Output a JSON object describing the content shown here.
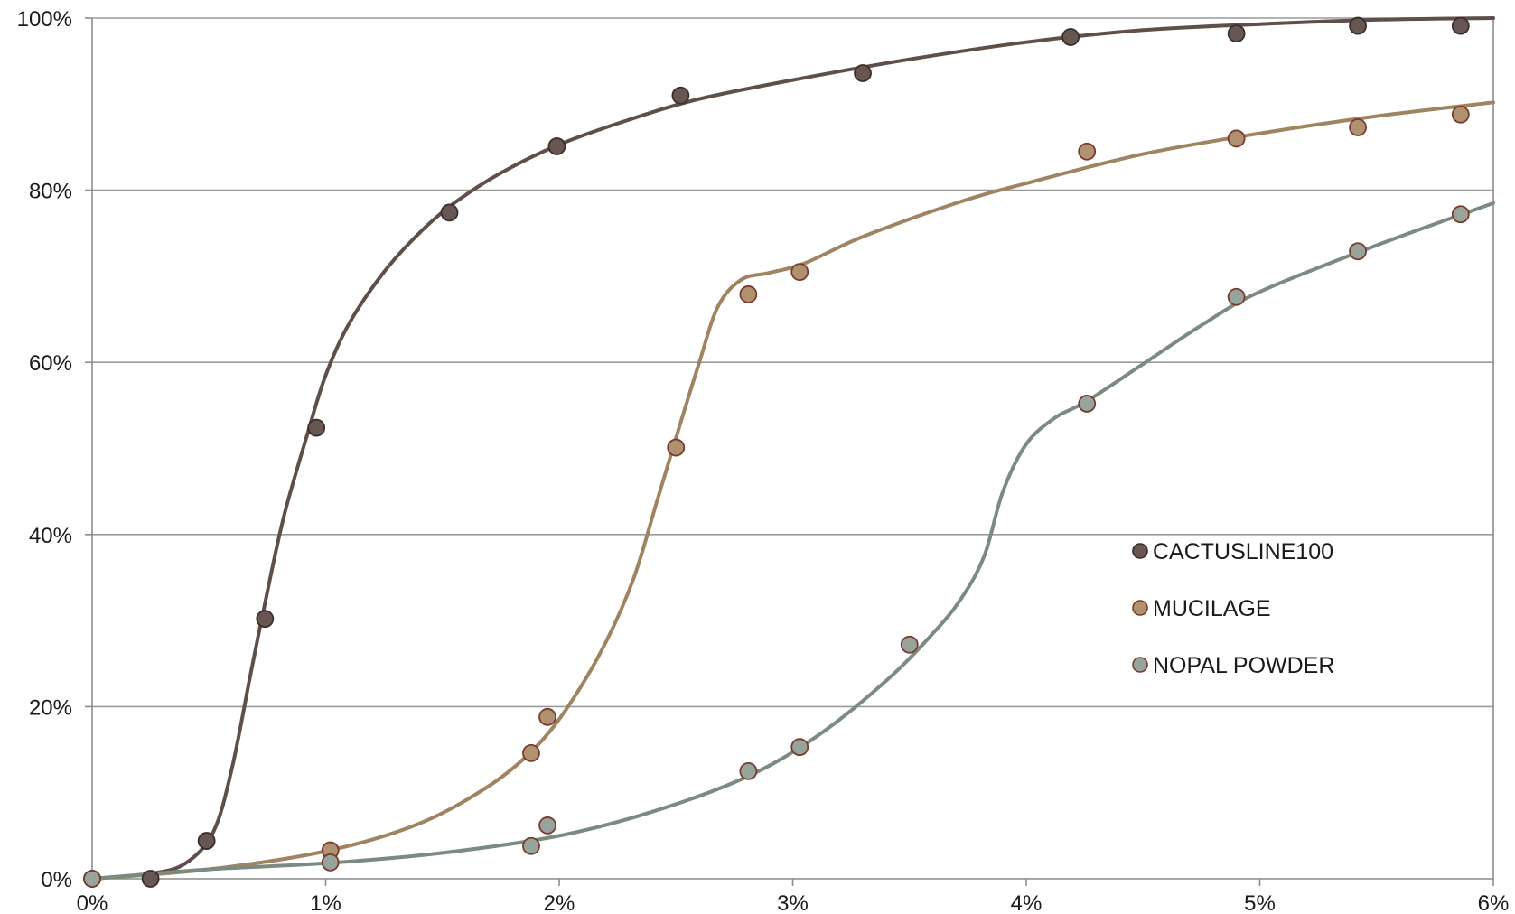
{
  "chart_data": {
    "type": "scatter",
    "title": "",
    "xlabel": "",
    "ylabel": "",
    "xlim": [
      0,
      6
    ],
    "ylim": [
      0,
      100
    ],
    "x_ticks": [
      0,
      1,
      2,
      3,
      4,
      5,
      6
    ],
    "y_ticks": [
      0,
      20,
      40,
      60,
      80,
      100
    ],
    "x_tick_labels": [
      "0%",
      "1%",
      "2%",
      "3%",
      "4%",
      "5%",
      "6%"
    ],
    "y_tick_labels": [
      "0%",
      "20%",
      "40%",
      "60%",
      "80%",
      "100%"
    ],
    "grid": "horizontal",
    "legend_position": "center-right",
    "series": [
      {
        "name": "CACTUSLINE100",
        "color": "#5e4f49",
        "fill": "#675651",
        "points": [
          [
            0,
            0
          ],
          [
            0.25,
            0
          ],
          [
            0.49,
            4.4
          ],
          [
            0.74,
            30.2
          ],
          [
            0.96,
            52.4
          ],
          [
            1.53,
            77.4
          ],
          [
            1.99,
            85.1
          ],
          [
            2.52,
            91
          ],
          [
            3.3,
            93.6
          ],
          [
            4.19,
            97.8
          ],
          [
            4.9,
            98.2
          ],
          [
            5.42,
            99.1
          ],
          [
            5.86,
            99.1
          ]
        ],
        "curve": [
          [
            0,
            0
          ],
          [
            0.25,
            0.6
          ],
          [
            0.4,
            1.8
          ],
          [
            0.52,
            5.5
          ],
          [
            0.6,
            13
          ],
          [
            0.68,
            24
          ],
          [
            0.74,
            32
          ],
          [
            0.82,
            42
          ],
          [
            0.92,
            51.5
          ],
          [
            1.0,
            58.5
          ],
          [
            1.1,
            64.5
          ],
          [
            1.25,
            70.5
          ],
          [
            1.4,
            75
          ],
          [
            1.55,
            78.5
          ],
          [
            1.75,
            82
          ],
          [
            2.0,
            85.3
          ],
          [
            2.3,
            88.2
          ],
          [
            2.6,
            90.6
          ],
          [
            3.0,
            92.8
          ],
          [
            3.5,
            95.2
          ],
          [
            4.0,
            97.2
          ],
          [
            4.5,
            98.6
          ],
          [
            5.0,
            99.3
          ],
          [
            5.5,
            99.8
          ],
          [
            6.0,
            100
          ]
        ]
      },
      {
        "name": "MUCILAGE",
        "color": "#a08461",
        "fill": "#b09170",
        "points": [
          [
            0,
            0
          ],
          [
            1.02,
            3.3
          ],
          [
            1.88,
            14.6
          ],
          [
            1.95,
            18.8
          ],
          [
            2.5,
            50.1
          ],
          [
            2.81,
            67.9
          ],
          [
            3.03,
            70.5
          ],
          [
            4.26,
            84.5
          ],
          [
            4.9,
            86
          ],
          [
            5.42,
            87.3
          ],
          [
            5.86,
            88.8
          ]
        ],
        "curve": [
          [
            0,
            0
          ],
          [
            0.5,
            1.1
          ],
          [
            1.0,
            3.2
          ],
          [
            1.4,
            6.4
          ],
          [
            1.7,
            10.8
          ],
          [
            1.9,
            15.3
          ],
          [
            2.05,
            20.5
          ],
          [
            2.2,
            27.5
          ],
          [
            2.32,
            35
          ],
          [
            2.42,
            44
          ],
          [
            2.52,
            53
          ],
          [
            2.6,
            60
          ],
          [
            2.68,
            66.5
          ],
          [
            2.78,
            69.6
          ],
          [
            2.9,
            70.4
          ],
          [
            3.05,
            71.5
          ],
          [
            3.3,
            74.6
          ],
          [
            3.7,
            78.5
          ],
          [
            4.0,
            80.8
          ],
          [
            4.5,
            84.2
          ],
          [
            5.0,
            86.6
          ],
          [
            5.5,
            88.6
          ],
          [
            6.0,
            90.2
          ]
        ]
      },
      {
        "name": "NOPAL POWDER",
        "color": "#7b8b82",
        "fill": "#96a49c",
        "points": [
          [
            0,
            0
          ],
          [
            1.02,
            1.9
          ],
          [
            1.88,
            3.8
          ],
          [
            1.95,
            6.2
          ],
          [
            2.81,
            12.5
          ],
          [
            3.03,
            15.3
          ],
          [
            3.5,
            27.2
          ],
          [
            4.26,
            55.2
          ],
          [
            4.9,
            67.6
          ],
          [
            5.42,
            72.9
          ],
          [
            5.86,
            77.2
          ]
        ],
        "curve": [
          [
            0,
            0
          ],
          [
            0.5,
            1.1
          ],
          [
            1.0,
            1.8
          ],
          [
            1.5,
            3.0
          ],
          [
            2.0,
            5.0
          ],
          [
            2.4,
            7.8
          ],
          [
            2.8,
            11.8
          ],
          [
            3.1,
            16.5
          ],
          [
            3.4,
            23
          ],
          [
            3.6,
            28.5
          ],
          [
            3.72,
            32.5
          ],
          [
            3.82,
            37.5
          ],
          [
            3.9,
            45
          ],
          [
            4.0,
            50.5
          ],
          [
            4.12,
            53.5
          ],
          [
            4.26,
            55.5
          ],
          [
            4.5,
            59.8
          ],
          [
            4.75,
            64.3
          ],
          [
            5.0,
            68.2
          ],
          [
            5.5,
            73.6
          ],
          [
            6.0,
            78.5
          ]
        ]
      }
    ]
  }
}
